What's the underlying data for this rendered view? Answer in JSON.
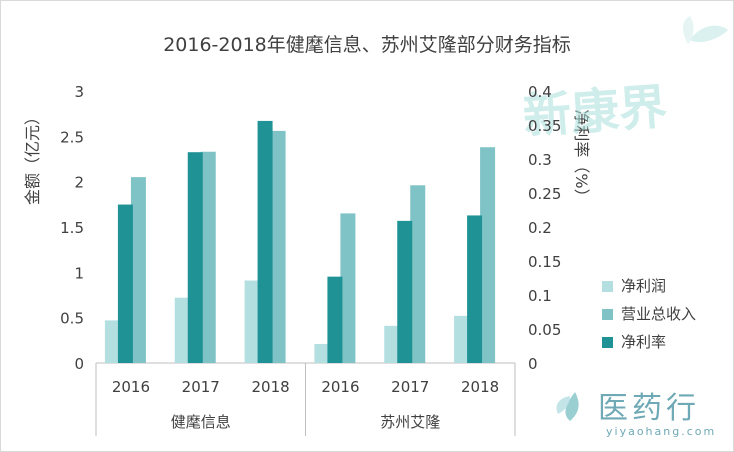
{
  "chart_data": {
    "type": "bar",
    "title": "2016-2018年健麾信息、苏州艾隆部分财务指标",
    "ylabel": "金额（亿元）",
    "y2label": "净利率（%）",
    "ylim": [
      0,
      3
    ],
    "y2lim": [
      0,
      0.4
    ],
    "yticks": [
      "0",
      "0.5",
      "1",
      "1.5",
      "2",
      "2.5",
      "3"
    ],
    "y2ticks": [
      "0",
      "0.05",
      "0.1",
      "0.15",
      "0.2",
      "0.25",
      "0.3",
      "0.35",
      "0.4"
    ],
    "groups": [
      {
        "name": "健麾信息",
        "categories": [
          "2016",
          "2017",
          "2018"
        ]
      },
      {
        "name": "苏州艾隆",
        "categories": [
          "2016",
          "2017",
          "2018"
        ]
      }
    ],
    "series": [
      {
        "name": "净利润",
        "axis": "left",
        "color": "#b4dfe1",
        "values": [
          0.47,
          0.72,
          0.91,
          0.21,
          0.41,
          0.52
        ]
      },
      {
        "name": "营业总收入",
        "axis": "left",
        "color": "#7fc3c6",
        "values": [
          2.05,
          2.33,
          2.56,
          1.65,
          1.96,
          2.38
        ]
      },
      {
        "name": "净利率",
        "axis": "right",
        "color": "#1f9296",
        "values": [
          0.233,
          0.31,
          0.356,
          0.127,
          0.209,
          0.217
        ]
      }
    ],
    "legend_position": "right",
    "grid": false
  },
  "watermarks": {
    "top_right_logo": "新康界",
    "bottom_right_logo": "医药行",
    "bottom_right_url": "yiyaohang.com"
  }
}
